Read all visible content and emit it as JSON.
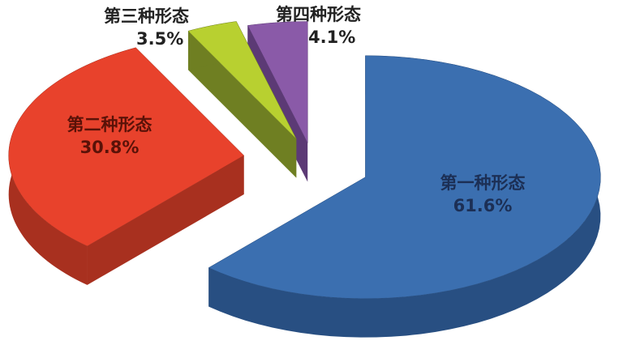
{
  "chart_data": {
    "type": "pie",
    "style": "3d-exploded",
    "title": "",
    "slices": [
      {
        "label": "第一种形态",
        "value": 61.6,
        "value_label": "61.6%",
        "color": "#3b6fb0",
        "side_color": "#284f82"
      },
      {
        "label": "第二种形态",
        "value": 30.8,
        "value_label": "30.8%",
        "color": "#e8422c",
        "side_color": "#a8301f"
      },
      {
        "label": "第三种形态",
        "value": 3.5,
        "value_label": "3.5%",
        "color": "#b8d030",
        "side_color": "#6f7f22"
      },
      {
        "label": "第四种形态",
        "value": 4.1,
        "value_label": "4.1%",
        "color": "#8a5aa8",
        "side_color": "#5c3a75"
      }
    ],
    "legend": "none"
  }
}
